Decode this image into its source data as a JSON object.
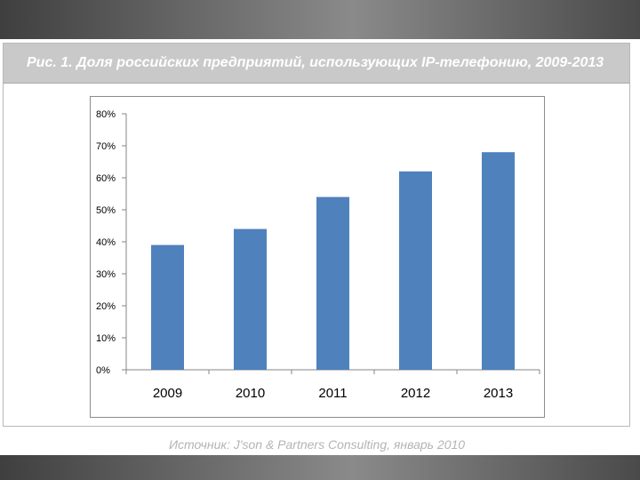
{
  "slide": {
    "title": "Рис. 1. Доля российских предприятий, использующих IP-телефонию, 2009-2013",
    "source": "Источник: J'son & Partners Consulting, январь 2010"
  },
  "colors": {
    "bar": "#4f81bd",
    "title_band": "#c9c9c9",
    "axis": "#868686"
  },
  "chart_data": {
    "type": "bar",
    "title": "",
    "xlabel": "",
    "ylabel": "",
    "categories": [
      "2009",
      "2010",
      "2011",
      "2012",
      "2013"
    ],
    "values": [
      39,
      44,
      54,
      62,
      68
    ],
    "value_unit": "%",
    "ylim": [
      0,
      80
    ],
    "yticks": [
      0,
      10,
      20,
      30,
      40,
      50,
      60,
      70,
      80
    ],
    "ytick_labels": [
      "0%",
      "10%",
      "20%",
      "30%",
      "40%",
      "50%",
      "60%",
      "70%",
      "80%"
    ],
    "grid": false,
    "legend": "none"
  }
}
